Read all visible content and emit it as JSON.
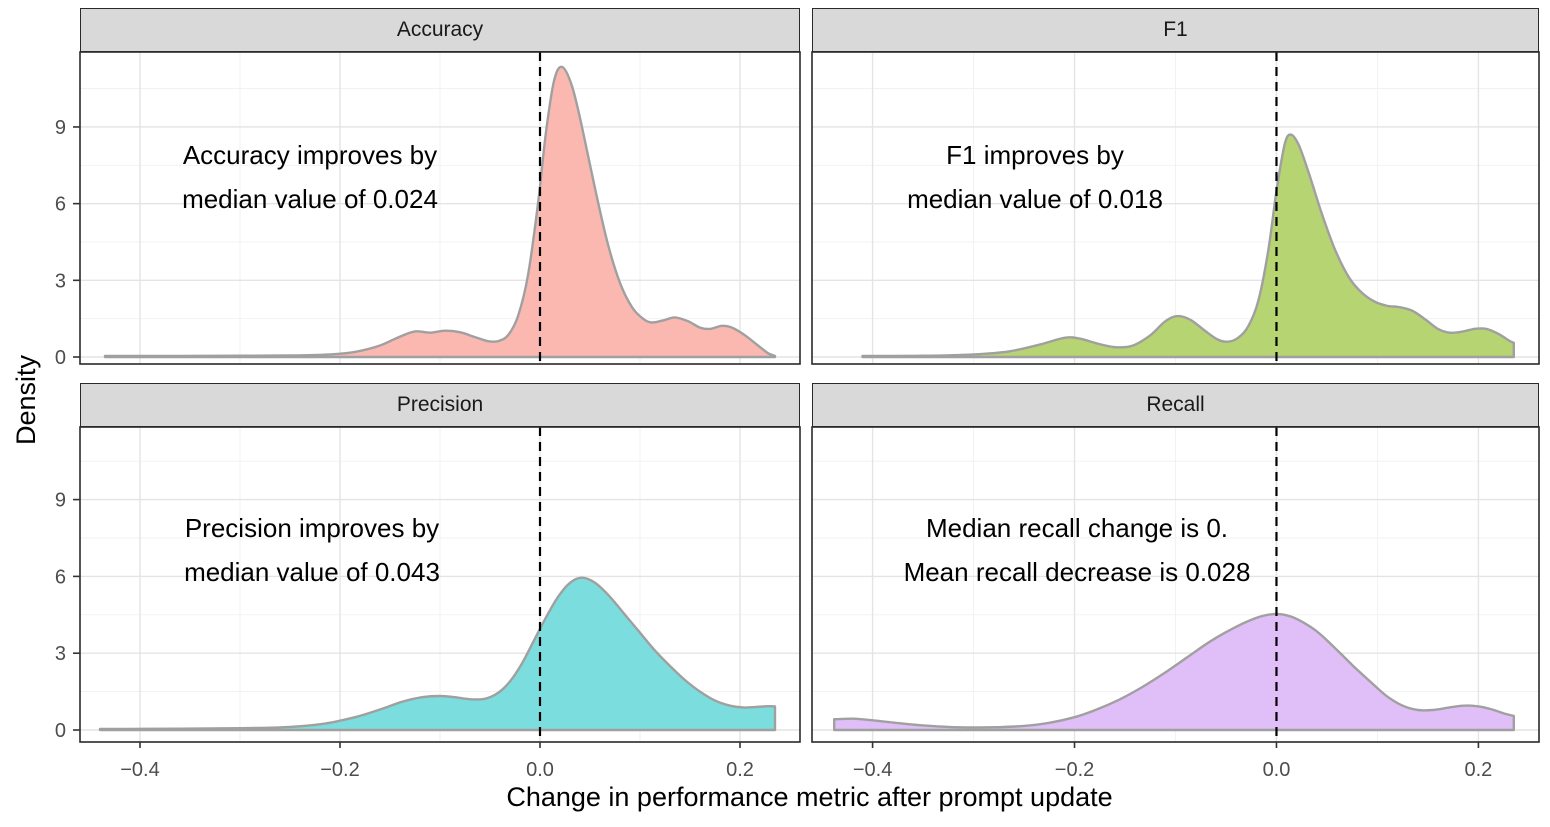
{
  "axes": {
    "x_title": "Change in performance metric after prompt update",
    "y_title": "Density",
    "x_tick_labels": [
      "−0.4",
      "−0.2",
      "0.0",
      "0.2"
    ],
    "x_tick_values": [
      -0.4,
      -0.2,
      0.0,
      0.2
    ],
    "x_minor_values": [
      -0.3,
      -0.1,
      0.1
    ],
    "y_tick_labels": [
      "0",
      "3",
      "6",
      "9"
    ],
    "y_tick_values": [
      0,
      3,
      6,
      9
    ],
    "y_minor_values": [
      1.5,
      4.5,
      7.5,
      10.5
    ]
  },
  "style": {
    "panel_background": "#FFFFFF",
    "panel_border": "#2A2A2A",
    "strip_background": "#D9D9D9",
    "grid_major": "#E4E4E4",
    "grid_minor": "#F1F1F1",
    "curve_outline": "#A0A0A0",
    "reference_line": "#000000",
    "tick_mark": "#333333",
    "tick_label": "#4D4D4D",
    "text": "#000000"
  },
  "chart_data": {
    "type": "area",
    "subtype": "faceted-kernel-density",
    "title": "",
    "xlabel": "Change in performance metric after prompt update",
    "ylabel": "Density",
    "x_range": [
      -0.46,
      0.26
    ],
    "x_ticks": [
      -0.4,
      -0.2,
      0.0,
      0.2
    ],
    "y_ticks": [
      0,
      3,
      6,
      9
    ],
    "grid": "major-and-minor",
    "legend": "none",
    "reference_line": {
      "x": 0,
      "style": "dashed"
    },
    "facets": [
      {
        "label": "Accuracy",
        "fill": "#FAB8B1",
        "annotation_line1": "Accuracy improves by",
        "annotation_line2": "median value of 0.024",
        "median_change": 0.024,
        "density_points": [
          [
            -0.435,
            0.04
          ],
          [
            -0.36,
            0.04
          ],
          [
            -0.3,
            0.05
          ],
          [
            -0.25,
            0.06
          ],
          [
            -0.21,
            0.1
          ],
          [
            -0.185,
            0.2
          ],
          [
            -0.16,
            0.45
          ],
          [
            -0.14,
            0.8
          ],
          [
            -0.125,
            1.0
          ],
          [
            -0.11,
            0.95
          ],
          [
            -0.095,
            1.03
          ],
          [
            -0.08,
            0.97
          ],
          [
            -0.065,
            0.78
          ],
          [
            -0.052,
            0.62
          ],
          [
            -0.042,
            0.62
          ],
          [
            -0.032,
            0.85
          ],
          [
            -0.022,
            1.6
          ],
          [
            -0.012,
            3.2
          ],
          [
            -0.002,
            6.0
          ],
          [
            0.006,
            8.8
          ],
          [
            0.014,
            10.8
          ],
          [
            0.022,
            11.35
          ],
          [
            0.032,
            10.6
          ],
          [
            0.042,
            9.0
          ],
          [
            0.055,
            6.6
          ],
          [
            0.068,
            4.4
          ],
          [
            0.08,
            2.9
          ],
          [
            0.092,
            1.95
          ],
          [
            0.103,
            1.5
          ],
          [
            0.112,
            1.35
          ],
          [
            0.125,
            1.45
          ],
          [
            0.135,
            1.55
          ],
          [
            0.148,
            1.4
          ],
          [
            0.16,
            1.15
          ],
          [
            0.17,
            1.1
          ],
          [
            0.182,
            1.22
          ],
          [
            0.192,
            1.15
          ],
          [
            0.205,
            0.85
          ],
          [
            0.218,
            0.45
          ],
          [
            0.228,
            0.15
          ],
          [
            0.235,
            0.04
          ]
        ]
      },
      {
        "label": "F1",
        "fill": "#B6D472",
        "annotation_line1": "F1 improves by",
        "annotation_line2": "median value of 0.018",
        "median_change": 0.018,
        "density_points": [
          [
            -0.41,
            0.04
          ],
          [
            -0.35,
            0.05
          ],
          [
            -0.3,
            0.1
          ],
          [
            -0.265,
            0.22
          ],
          [
            -0.235,
            0.48
          ],
          [
            -0.21,
            0.75
          ],
          [
            -0.195,
            0.72
          ],
          [
            -0.175,
            0.5
          ],
          [
            -0.158,
            0.38
          ],
          [
            -0.142,
            0.45
          ],
          [
            -0.125,
            0.85
          ],
          [
            -0.11,
            1.4
          ],
          [
            -0.098,
            1.6
          ],
          [
            -0.085,
            1.45
          ],
          [
            -0.07,
            1.0
          ],
          [
            -0.058,
            0.68
          ],
          [
            -0.048,
            0.6
          ],
          [
            -0.038,
            0.75
          ],
          [
            -0.028,
            1.2
          ],
          [
            -0.018,
            2.2
          ],
          [
            -0.008,
            4.2
          ],
          [
            0.0,
            6.5
          ],
          [
            0.008,
            8.3
          ],
          [
            0.014,
            8.7
          ],
          [
            0.022,
            8.3
          ],
          [
            0.032,
            7.2
          ],
          [
            0.045,
            5.6
          ],
          [
            0.058,
            4.2
          ],
          [
            0.072,
            3.1
          ],
          [
            0.085,
            2.5
          ],
          [
            0.098,
            2.15
          ],
          [
            0.11,
            2.0
          ],
          [
            0.122,
            1.95
          ],
          [
            0.135,
            1.8
          ],
          [
            0.148,
            1.45
          ],
          [
            0.16,
            1.1
          ],
          [
            0.172,
            0.95
          ],
          [
            0.185,
            1.0
          ],
          [
            0.196,
            1.1
          ],
          [
            0.208,
            1.1
          ],
          [
            0.22,
            0.9
          ],
          [
            0.23,
            0.65
          ],
          [
            0.235,
            0.55
          ]
        ]
      },
      {
        "label": "Precision",
        "fill": "#7CDDDE",
        "annotation_line1": "Precision improves by",
        "annotation_line2": "median value of 0.043",
        "median_change": 0.043,
        "density_points": [
          [
            -0.44,
            0.04
          ],
          [
            -0.36,
            0.05
          ],
          [
            -0.3,
            0.07
          ],
          [
            -0.25,
            0.12
          ],
          [
            -0.215,
            0.25
          ],
          [
            -0.185,
            0.5
          ],
          [
            -0.16,
            0.8
          ],
          [
            -0.138,
            1.1
          ],
          [
            -0.118,
            1.28
          ],
          [
            -0.1,
            1.33
          ],
          [
            -0.085,
            1.28
          ],
          [
            -0.07,
            1.2
          ],
          [
            -0.055,
            1.22
          ],
          [
            -0.042,
            1.45
          ],
          [
            -0.03,
            1.9
          ],
          [
            -0.018,
            2.6
          ],
          [
            -0.006,
            3.5
          ],
          [
            0.006,
            4.4
          ],
          [
            0.018,
            5.2
          ],
          [
            0.03,
            5.75
          ],
          [
            0.042,
            5.95
          ],
          [
            0.055,
            5.75
          ],
          [
            0.07,
            5.2
          ],
          [
            0.085,
            4.5
          ],
          [
            0.1,
            3.8
          ],
          [
            0.115,
            3.1
          ],
          [
            0.13,
            2.5
          ],
          [
            0.145,
            1.95
          ],
          [
            0.16,
            1.5
          ],
          [
            0.175,
            1.15
          ],
          [
            0.19,
            0.95
          ],
          [
            0.203,
            0.88
          ],
          [
            0.216,
            0.9
          ],
          [
            0.228,
            0.93
          ],
          [
            0.235,
            0.92
          ]
        ]
      },
      {
        "label": "Recall",
        "fill": "#E0BEF8",
        "annotation_line1": "Median recall change is 0.",
        "annotation_line2": "Mean recall decrease is 0.028",
        "median_change": 0,
        "mean_change": -0.028,
        "density_points": [
          [
            -0.438,
            0.42
          ],
          [
            -0.42,
            0.44
          ],
          [
            -0.4,
            0.38
          ],
          [
            -0.375,
            0.27
          ],
          [
            -0.35,
            0.18
          ],
          [
            -0.325,
            0.12
          ],
          [
            -0.3,
            0.1
          ],
          [
            -0.275,
            0.11
          ],
          [
            -0.25,
            0.16
          ],
          [
            -0.225,
            0.28
          ],
          [
            -0.2,
            0.5
          ],
          [
            -0.178,
            0.8
          ],
          [
            -0.155,
            1.2
          ],
          [
            -0.132,
            1.7
          ],
          [
            -0.11,
            2.25
          ],
          [
            -0.088,
            2.85
          ],
          [
            -0.066,
            3.45
          ],
          [
            -0.044,
            3.95
          ],
          [
            -0.022,
            4.35
          ],
          [
            -0.005,
            4.52
          ],
          [
            0.008,
            4.5
          ],
          [
            0.022,
            4.3
          ],
          [
            0.04,
            3.85
          ],
          [
            0.058,
            3.2
          ],
          [
            0.076,
            2.5
          ],
          [
            0.094,
            1.85
          ],
          [
            0.11,
            1.3
          ],
          [
            0.125,
            0.95
          ],
          [
            0.14,
            0.78
          ],
          [
            0.155,
            0.78
          ],
          [
            0.17,
            0.87
          ],
          [
            0.185,
            0.95
          ],
          [
            0.198,
            0.93
          ],
          [
            0.212,
            0.82
          ],
          [
            0.225,
            0.65
          ],
          [
            0.235,
            0.55
          ]
        ]
      }
    ]
  }
}
